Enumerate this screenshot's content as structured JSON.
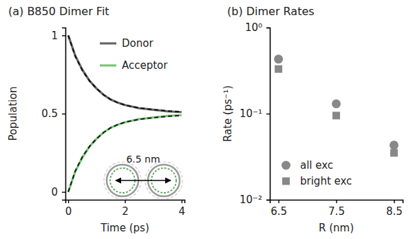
{
  "chart_data": [
    {
      "type": "line",
      "title": "(a) B850 Dimer Fit",
      "x_label": "Time (ps)",
      "y_label": "Population",
      "annotation": "6.5 nm",
      "x": [
        0,
        0.25,
        0.5,
        0.75,
        1,
        1.25,
        1.5,
        1.75,
        2,
        2.25,
        2.5,
        2.75,
        3,
        3.25,
        3.5,
        3.75,
        4
      ],
      "series": [
        {
          "name": "Donor",
          "color": "#666666",
          "line_style": "solid",
          "values": [
            1.0,
            0.87,
            0.78,
            0.71,
            0.66,
            0.62,
            0.59,
            0.57,
            0.555,
            0.545,
            0.535,
            0.53,
            0.525,
            0.52,
            0.515,
            0.512,
            0.51
          ]
        },
        {
          "name": "Acceptor",
          "color": "#78c679",
          "line_style": "solid",
          "values": [
            0.0,
            0.13,
            0.22,
            0.29,
            0.34,
            0.38,
            0.41,
            0.43,
            0.445,
            0.455,
            0.465,
            0.47,
            0.475,
            0.48,
            0.485,
            0.488,
            0.49
          ]
        },
        {
          "color": "#000000",
          "line_style": "dashed",
          "values": [
            1.0,
            0.865,
            0.775,
            0.71,
            0.66,
            0.62,
            0.59,
            0.57,
            0.555,
            0.545,
            0.537,
            0.531,
            0.526,
            0.521,
            0.517,
            0.514,
            0.512
          ]
        },
        {
          "color": "#000000",
          "line_style": "dashed",
          "values": [
            0.0,
            0.135,
            0.225,
            0.29,
            0.34,
            0.38,
            0.41,
            0.43,
            0.445,
            0.455,
            0.463,
            0.469,
            0.474,
            0.479,
            0.483,
            0.486,
            0.488
          ]
        }
      ],
      "xlim": [
        -0.1,
        4.1
      ],
      "xticks": [
        0,
        2,
        4
      ],
      "ylim": [
        -0.05,
        1.05
      ],
      "yticks": [
        0,
        0.5,
        1
      ],
      "legend": "upper right"
    },
    {
      "type": "scatter",
      "title": "(b) Dimer Rates",
      "x_label": "R (nm)",
      "y_label": "Rate (ps⁻¹)",
      "x": [
        6.5,
        7.5,
        8.5
      ],
      "series": [
        {
          "name": "all exc",
          "color": "#888888",
          "marker": "circle",
          "values": [
            0.43,
            0.13,
            0.043
          ]
        },
        {
          "name": "bright exc",
          "color": "#888888",
          "marker": "square",
          "values": [
            0.33,
            0.095,
            0.035
          ]
        }
      ],
      "xlim": [
        6.35,
        8.65
      ],
      "xticks": [
        6.5,
        7.5,
        8.5
      ],
      "ylim": [
        0.01,
        1
      ],
      "yticks": [
        {
          "value": 0.01,
          "label": "10⁻²"
        },
        {
          "value": 0.1,
          "label": "10⁻¹"
        },
        {
          "value": 1,
          "label": "10⁰"
        }
      ],
      "log": "y",
      "legend": "lower left"
    }
  ]
}
